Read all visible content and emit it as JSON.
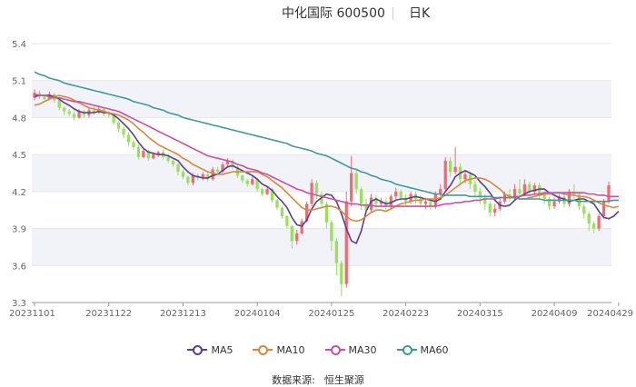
{
  "header": {
    "title": "中化国际 600500",
    "period": "日K"
  },
  "colors": {
    "up": "#f06a73",
    "down": "#98e05e",
    "ma5": "#5b3e96",
    "ma10": "#d9883a",
    "ma30": "#cc50a6",
    "ma60": "#3f9a98",
    "band": "#f2f3f8",
    "axis": "#666666"
  },
  "legend": [
    {
      "label": "MA5",
      "color": "#5b3e96"
    },
    {
      "label": "MA10",
      "color": "#d9883a"
    },
    {
      "label": "MA30",
      "color": "#cc50a6"
    },
    {
      "label": "MA60",
      "color": "#3f9a98"
    }
  ],
  "source": {
    "label": "数据来源:",
    "value": "恒生聚源"
  },
  "chart_data": {
    "type": "candlestick",
    "title": "中化国际 600500",
    "ylim": [
      3.3,
      5.4
    ],
    "y_ticks": [
      "3.3",
      "3.6",
      "3.9",
      "4.2",
      "4.5",
      "4.8",
      "5.1",
      "5.4"
    ],
    "x_ticks": [
      "20231101",
      "20231122",
      "20231213",
      "20240104",
      "20240125",
      "20240223",
      "20240315",
      "20240409",
      "20240429"
    ],
    "x_tick_index": [
      0,
      15,
      30,
      45,
      60,
      75,
      90,
      105,
      118
    ],
    "candles": [
      [
        4.96,
        5.0,
        5.03,
        4.94
      ],
      [
        5.0,
        4.97,
        5.02,
        4.95
      ],
      [
        4.97,
        4.95,
        4.99,
        4.93
      ],
      [
        4.95,
        4.99,
        5.01,
        4.94
      ],
      [
        4.99,
        4.94,
        5.0,
        4.92
      ],
      [
        4.94,
        4.88,
        4.95,
        4.86
      ],
      [
        4.88,
        4.85,
        4.89,
        4.82
      ],
      [
        4.85,
        4.83,
        4.87,
        4.81
      ],
      [
        4.83,
        4.8,
        4.85,
        4.78
      ],
      [
        4.8,
        4.85,
        4.87,
        4.79
      ],
      [
        4.85,
        4.82,
        4.86,
        4.8
      ],
      [
        4.82,
        4.86,
        4.88,
        4.8
      ],
      [
        4.86,
        4.84,
        4.89,
        4.82
      ],
      [
        4.84,
        4.87,
        4.89,
        4.83
      ],
      [
        4.87,
        4.83,
        4.88,
        4.81
      ],
      [
        4.83,
        4.82,
        4.85,
        4.8
      ],
      [
        4.82,
        4.76,
        4.84,
        4.74
      ],
      [
        4.76,
        4.71,
        4.77,
        4.68
      ],
      [
        4.71,
        4.66,
        4.73,
        4.63
      ],
      [
        4.66,
        4.6,
        4.68,
        4.57
      ],
      [
        4.6,
        4.56,
        4.62,
        4.54
      ],
      [
        4.56,
        4.48,
        4.58,
        4.46
      ],
      [
        4.48,
        4.53,
        4.55,
        4.47
      ],
      [
        4.53,
        4.47,
        4.54,
        4.45
      ],
      [
        4.47,
        4.5,
        4.52,
        4.46
      ],
      [
        4.5,
        4.52,
        4.53,
        4.48
      ],
      [
        4.52,
        4.48,
        4.54,
        4.46
      ],
      [
        4.48,
        4.45,
        4.5,
        4.43
      ],
      [
        4.45,
        4.42,
        4.47,
        4.4
      ],
      [
        4.42,
        4.36,
        4.43,
        4.33
      ],
      [
        4.36,
        4.32,
        4.38,
        4.3
      ],
      [
        4.32,
        4.27,
        4.33,
        4.25
      ],
      [
        4.27,
        4.33,
        4.35,
        4.25
      ],
      [
        4.33,
        4.31,
        4.35,
        4.29
      ],
      [
        4.31,
        4.34,
        4.36,
        4.29
      ],
      [
        4.34,
        4.3,
        4.35,
        4.28
      ],
      [
        4.3,
        4.38,
        4.4,
        4.29
      ],
      [
        4.38,
        4.36,
        4.4,
        4.34
      ],
      [
        4.36,
        4.42,
        4.44,
        4.35
      ],
      [
        4.42,
        4.45,
        4.47,
        4.4
      ],
      [
        4.45,
        4.4,
        4.46,
        4.38
      ],
      [
        4.4,
        4.33,
        4.41,
        4.31
      ],
      [
        4.33,
        4.29,
        4.34,
        4.27
      ],
      [
        4.29,
        4.26,
        4.3,
        4.24
      ],
      [
        4.26,
        4.3,
        4.32,
        4.25
      ],
      [
        4.3,
        4.22,
        4.31,
        4.2
      ],
      [
        4.22,
        4.18,
        4.23,
        4.16
      ],
      [
        4.18,
        4.22,
        4.24,
        4.17
      ],
      [
        4.22,
        4.13,
        4.23,
        4.11
      ],
      [
        4.13,
        4.07,
        4.14,
        4.05
      ],
      [
        4.07,
        4.0,
        4.08,
        3.98
      ],
      [
        4.0,
        3.92,
        4.01,
        3.9
      ],
      [
        3.92,
        3.8,
        3.93,
        3.74
      ],
      [
        3.8,
        3.86,
        3.89,
        3.77
      ],
      [
        3.86,
        3.96,
        3.98,
        3.85
      ],
      [
        3.96,
        4.1,
        4.12,
        3.95
      ],
      [
        4.1,
        4.27,
        4.3,
        4.08
      ],
      [
        4.27,
        4.18,
        4.29,
        4.14
      ],
      [
        4.18,
        4.1,
        4.2,
        4.06
      ],
      [
        4.1,
        3.95,
        4.12,
        3.9
      ],
      [
        3.95,
        3.8,
        3.97,
        3.72
      ],
      [
        3.8,
        3.62,
        3.82,
        3.52
      ],
      [
        3.62,
        3.45,
        3.64,
        3.35
      ],
      [
        3.45,
        4.12,
        4.2,
        3.42
      ],
      [
        4.12,
        4.35,
        4.49,
        4.08
      ],
      [
        4.35,
        4.22,
        4.38,
        4.18
      ],
      [
        4.22,
        4.1,
        4.24,
        4.05
      ],
      [
        4.1,
        4.05,
        4.14,
        4.02
      ],
      [
        4.05,
        4.15,
        4.18,
        4.03
      ],
      [
        4.15,
        4.1,
        4.17,
        4.06
      ],
      [
        4.1,
        4.12,
        4.15,
        4.08
      ],
      [
        4.12,
        4.08,
        4.15,
        4.05
      ],
      [
        4.08,
        4.16,
        4.18,
        4.06
      ],
      [
        4.16,
        4.2,
        4.23,
        4.13
      ],
      [
        4.2,
        4.15,
        4.22,
        4.12
      ],
      [
        4.15,
        4.12,
        4.18,
        4.09
      ],
      [
        4.12,
        4.18,
        4.2,
        4.1
      ],
      [
        4.18,
        4.14,
        4.2,
        4.1
      ],
      [
        4.14,
        4.1,
        4.17,
        4.07
      ],
      [
        4.1,
        4.12,
        4.15,
        4.06
      ],
      [
        4.12,
        4.08,
        4.14,
        4.05
      ],
      [
        4.08,
        4.18,
        4.2,
        4.06
      ],
      [
        4.18,
        4.22,
        4.26,
        4.16
      ],
      [
        4.22,
        4.45,
        4.48,
        4.2
      ],
      [
        4.45,
        4.36,
        4.48,
        4.32
      ],
      [
        4.36,
        4.4,
        4.56,
        4.34
      ],
      [
        4.4,
        4.3,
        4.43,
        4.26
      ],
      [
        4.3,
        4.34,
        4.37,
        4.27
      ],
      [
        4.34,
        4.26,
        4.36,
        4.22
      ],
      [
        4.26,
        4.2,
        4.29,
        4.16
      ],
      [
        4.2,
        4.15,
        4.23,
        4.1
      ],
      [
        4.15,
        4.1,
        4.18,
        4.05
      ],
      [
        4.1,
        4.03,
        4.12,
        4.0
      ],
      [
        4.03,
        4.06,
        4.1,
        4.0
      ],
      [
        4.06,
        4.12,
        4.16,
        4.04
      ],
      [
        4.12,
        4.18,
        4.2,
        4.1
      ],
      [
        4.18,
        4.15,
        4.22,
        4.12
      ],
      [
        4.15,
        4.22,
        4.26,
        4.13
      ],
      [
        4.22,
        4.18,
        4.3,
        4.15
      ],
      [
        4.18,
        4.26,
        4.3,
        4.16
      ],
      [
        4.26,
        4.2,
        4.28,
        4.16
      ],
      [
        4.2,
        4.25,
        4.27,
        4.17
      ],
      [
        4.25,
        4.18,
        4.27,
        4.14
      ],
      [
        4.18,
        4.14,
        4.2,
        4.1
      ],
      [
        4.14,
        4.08,
        4.16,
        4.05
      ],
      [
        4.08,
        4.12,
        4.15,
        4.06
      ],
      [
        4.12,
        4.16,
        4.18,
        4.1
      ],
      [
        4.16,
        4.1,
        4.18,
        4.07
      ],
      [
        4.1,
        4.2,
        4.22,
        4.08
      ],
      [
        4.2,
        4.18,
        4.26,
        4.14
      ],
      [
        4.18,
        4.08,
        4.2,
        4.05
      ],
      [
        4.08,
        4.02,
        4.1,
        3.98
      ],
      [
        4.02,
        3.94,
        4.04,
        3.88
      ],
      [
        3.94,
        3.9,
        3.96,
        3.86
      ],
      [
        3.9,
        4.0,
        4.02,
        3.88
      ],
      [
        4.0,
        4.12,
        4.14,
        3.98
      ],
      [
        4.12,
        4.25,
        4.28,
        4.1
      ]
    ],
    "series": [
      {
        "name": "MA5",
        "color": "#5b3e96",
        "values": [
          4.97,
          4.98,
          4.98,
          4.98,
          4.97,
          4.95,
          4.92,
          4.9,
          4.87,
          4.85,
          4.84,
          4.84,
          4.84,
          4.85,
          4.84,
          4.84,
          4.82,
          4.79,
          4.75,
          4.71,
          4.66,
          4.6,
          4.55,
          4.52,
          4.51,
          4.5,
          4.5,
          4.49,
          4.47,
          4.45,
          4.4,
          4.36,
          4.33,
          4.32,
          4.31,
          4.31,
          4.33,
          4.34,
          4.37,
          4.4,
          4.41,
          4.39,
          4.37,
          4.35,
          4.33,
          4.3,
          4.26,
          4.24,
          4.21,
          4.16,
          4.12,
          4.07,
          3.99,
          3.93,
          3.92,
          3.97,
          4.06,
          4.12,
          4.15,
          4.18,
          4.17,
          4.12,
          4.02,
          3.9,
          3.8,
          3.78,
          3.88,
          4.04,
          4.12,
          4.14,
          4.12,
          4.1,
          4.11,
          4.13,
          4.14,
          4.14,
          4.15,
          4.16,
          4.15,
          4.14,
          4.13,
          4.12,
          4.14,
          4.2,
          4.25,
          4.32,
          4.35,
          4.37,
          4.35,
          4.33,
          4.28,
          4.24,
          4.19,
          4.13,
          4.09,
          4.08,
          4.09,
          4.13,
          4.16,
          4.18,
          4.2,
          4.21,
          4.22,
          4.22,
          4.19,
          4.17,
          4.15,
          4.14,
          4.12,
          4.13,
          4.14,
          4.14,
          4.12,
          4.1,
          4.04,
          3.99,
          3.98,
          4.0,
          4.04
        ]
      },
      {
        "name": "MA10",
        "color": "#d9883a",
        "values": [
          4.9,
          4.91,
          4.93,
          4.95,
          4.97,
          4.98,
          4.97,
          4.96,
          4.94,
          4.92,
          4.9,
          4.88,
          4.87,
          4.86,
          4.85,
          4.84,
          4.83,
          4.82,
          4.8,
          4.78,
          4.75,
          4.71,
          4.68,
          4.64,
          4.61,
          4.58,
          4.56,
          4.54,
          4.52,
          4.5,
          4.47,
          4.45,
          4.42,
          4.4,
          4.38,
          4.36,
          4.35,
          4.34,
          4.34,
          4.35,
          4.36,
          4.36,
          4.36,
          4.36,
          4.36,
          4.36,
          4.34,
          4.32,
          4.29,
          4.26,
          4.23,
          4.19,
          4.15,
          4.11,
          4.07,
          4.05,
          4.05,
          4.06,
          4.07,
          4.08,
          4.08,
          4.07,
          4.04,
          4.0,
          3.97,
          3.96,
          3.97,
          4.0,
          4.03,
          4.05,
          4.05,
          4.04,
          4.06,
          4.08,
          4.1,
          4.11,
          4.12,
          4.13,
          4.13,
          4.14,
          4.14,
          4.14,
          4.15,
          4.17,
          4.2,
          4.23,
          4.26,
          4.29,
          4.3,
          4.31,
          4.31,
          4.3,
          4.28,
          4.25,
          4.22,
          4.18,
          4.16,
          4.15,
          4.14,
          4.14,
          4.15,
          4.16,
          4.17,
          4.18,
          4.18,
          4.19,
          4.19,
          4.18,
          4.17,
          4.17,
          4.16,
          4.16,
          4.15,
          4.13,
          4.11,
          4.09,
          4.08,
          4.07,
          4.08
        ]
      },
      {
        "name": "MA30",
        "color": "#cc50a6",
        "values": [
          4.99,
          4.98,
          4.98,
          4.97,
          4.96,
          4.96,
          4.95,
          4.94,
          4.93,
          4.93,
          4.92,
          4.91,
          4.9,
          4.89,
          4.88,
          4.87,
          4.86,
          4.85,
          4.83,
          4.81,
          4.79,
          4.77,
          4.75,
          4.73,
          4.71,
          4.69,
          4.67,
          4.65,
          4.63,
          4.61,
          4.59,
          4.57,
          4.55,
          4.53,
          4.51,
          4.49,
          4.48,
          4.47,
          4.46,
          4.45,
          4.44,
          4.42,
          4.41,
          4.39,
          4.38,
          4.37,
          4.35,
          4.34,
          4.32,
          4.3,
          4.28,
          4.26,
          4.24,
          4.22,
          4.21,
          4.19,
          4.18,
          4.17,
          4.16,
          4.15,
          4.14,
          4.13,
          4.12,
          4.11,
          4.1,
          4.1,
          4.09,
          4.09,
          4.09,
          4.08,
          4.08,
          4.08,
          4.08,
          4.08,
          4.08,
          4.08,
          4.08,
          4.08,
          4.08,
          4.08,
          4.08,
          4.08,
          4.09,
          4.1,
          4.1,
          4.11,
          4.11,
          4.12,
          4.12,
          4.13,
          4.13,
          4.14,
          4.14,
          4.14,
          4.15,
          4.15,
          4.15,
          4.16,
          4.16,
          4.17,
          4.17,
          4.18,
          4.18,
          4.19,
          4.19,
          4.19,
          4.19,
          4.19,
          4.19,
          4.19,
          4.19,
          4.19,
          4.18,
          4.18,
          4.17,
          4.17,
          4.16,
          4.16,
          4.16
        ]
      },
      {
        "name": "MA60",
        "color": "#3f9a98",
        "values": [
          5.17,
          5.15,
          5.14,
          5.12,
          5.11,
          5.1,
          5.08,
          5.07,
          5.06,
          5.05,
          5.04,
          5.03,
          5.02,
          5.01,
          5.0,
          4.99,
          4.98,
          4.97,
          4.96,
          4.95,
          4.93,
          4.92,
          4.91,
          4.9,
          4.88,
          4.87,
          4.86,
          4.84,
          4.83,
          4.82,
          4.8,
          4.79,
          4.78,
          4.77,
          4.76,
          4.75,
          4.74,
          4.73,
          4.72,
          4.71,
          4.7,
          4.69,
          4.68,
          4.67,
          4.66,
          4.65,
          4.64,
          4.63,
          4.62,
          4.61,
          4.6,
          4.59,
          4.57,
          4.56,
          4.55,
          4.54,
          4.53,
          4.51,
          4.5,
          4.49,
          4.47,
          4.45,
          4.43,
          4.41,
          4.39,
          4.38,
          4.36,
          4.35,
          4.33,
          4.32,
          4.3,
          4.29,
          4.28,
          4.26,
          4.25,
          4.24,
          4.23,
          4.22,
          4.21,
          4.2,
          4.19,
          4.18,
          4.18,
          4.17,
          4.17,
          4.17,
          4.17,
          4.17,
          4.16,
          4.16,
          4.16,
          4.16,
          4.16,
          4.15,
          4.15,
          4.15,
          4.15,
          4.15,
          4.14,
          4.14,
          4.14,
          4.14,
          4.14,
          4.13,
          4.13,
          4.13,
          4.13,
          4.13,
          4.13,
          4.13,
          4.12,
          4.12,
          4.12,
          4.12,
          4.12,
          4.12,
          4.12,
          4.13,
          4.13
        ]
      }
    ]
  }
}
